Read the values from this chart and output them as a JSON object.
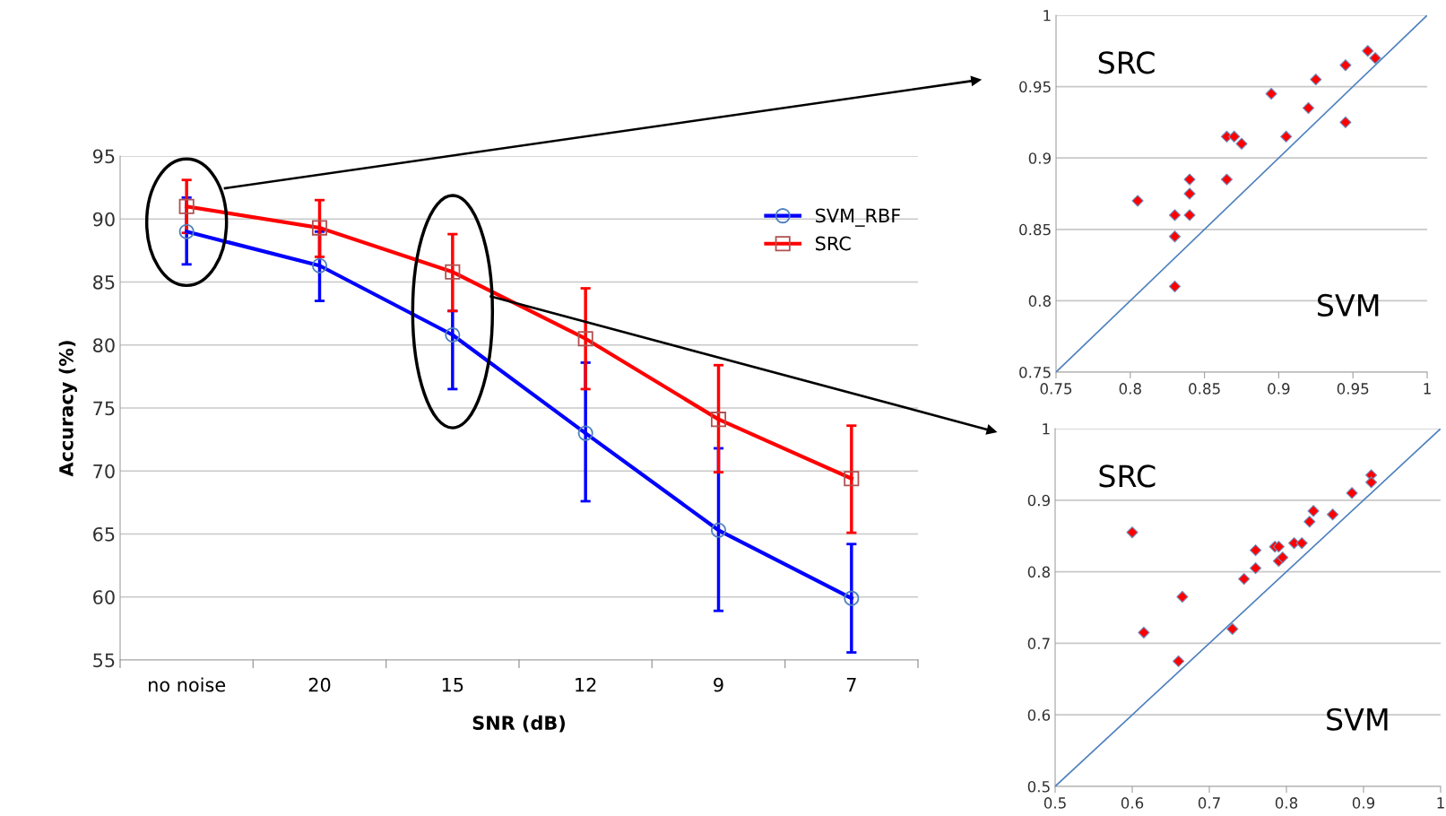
{
  "chart_data": [
    {
      "type": "line",
      "xlabel": "SNR (dB)",
      "ylabel": "Accuracy (%)",
      "categories": [
        "no noise",
        "20",
        "15",
        "12",
        "9",
        "7"
      ],
      "ylim": [
        55,
        95
      ],
      "yticks": [
        55,
        60,
        65,
        70,
        75,
        80,
        85,
        90,
        95
      ],
      "grid": "y",
      "legend": "top right",
      "series": [
        {
          "name": "SVM_RBF",
          "color": "#0000ff",
          "marker": "circle",
          "values": [
            89.0,
            86.3,
            80.8,
            73.0,
            65.3,
            59.9
          ],
          "errors": [
            [
              86.4,
              91.7
            ],
            [
              83.5,
              89.0
            ],
            [
              76.5,
              82.7
            ],
            [
              67.6,
              78.6
            ],
            [
              58.9,
              71.8
            ],
            [
              55.6,
              64.2
            ]
          ]
        },
        {
          "name": "SRC",
          "color": "#ff0000",
          "marker": "square",
          "values": [
            91.0,
            89.3,
            85.8,
            80.5,
            74.1,
            69.4
          ],
          "errors": [
            [
              88.9,
              93.1
            ],
            [
              87.0,
              91.5
            ],
            [
              82.7,
              88.8
            ],
            [
              76.5,
              84.5
            ],
            [
              69.9,
              78.4
            ],
            [
              65.1,
              73.6
            ]
          ]
        }
      ]
    },
    {
      "type": "scatter",
      "xlim": [
        0.75,
        1
      ],
      "xticks": [
        0.75,
        0.8,
        0.85,
        0.9,
        0.95,
        1
      ],
      "ylim": [
        0.75,
        1
      ],
      "yticks": [
        0.75,
        0.8,
        0.85,
        0.9,
        0.95,
        1
      ],
      "grid": "y",
      "annotations": [
        "SRC",
        "SVM"
      ],
      "series": [
        {
          "type": "scatter",
          "color": "#ff0000",
          "marker": "diamond",
          "x": [
            0.805,
            0.83,
            0.83,
            0.83,
            0.84,
            0.84,
            0.84,
            0.865,
            0.87,
            0.875,
            0.865,
            0.895,
            0.905,
            0.92,
            0.925,
            0.945,
            0.945,
            0.96,
            0.965
          ],
          "values": [
            0.87,
            0.86,
            0.845,
            0.81,
            0.885,
            0.875,
            0.86,
            0.915,
            0.915,
            0.91,
            0.885,
            0.945,
            0.915,
            0.935,
            0.955,
            0.965,
            0.925,
            0.975,
            0.97
          ]
        },
        {
          "type": "line",
          "color": "#4f81bd",
          "x": [
            0.75,
            1
          ],
          "values": [
            0.75,
            1
          ]
        }
      ]
    },
    {
      "type": "scatter",
      "xlim": [
        0.5,
        1
      ],
      "xticks": [
        0.5,
        0.6,
        0.7,
        0.8,
        0.9,
        1
      ],
      "ylim": [
        0.5,
        1
      ],
      "yticks": [
        0.5,
        0.6,
        0.7,
        0.8,
        0.9,
        1
      ],
      "grid": "y",
      "annotations": [
        "SRC",
        "SVM"
      ],
      "series": [
        {
          "type": "scatter",
          "color": "#ff0000",
          "marker": "diamond",
          "x": [
            0.6,
            0.615,
            0.66,
            0.665,
            0.73,
            0.745,
            0.76,
            0.76,
            0.785,
            0.79,
            0.79,
            0.795,
            0.81,
            0.82,
            0.83,
            0.835,
            0.86,
            0.885,
            0.91,
            0.91
          ],
          "values": [
            0.855,
            0.715,
            0.675,
            0.765,
            0.72,
            0.79,
            0.83,
            0.805,
            0.835,
            0.835,
            0.815,
            0.82,
            0.84,
            0.84,
            0.87,
            0.885,
            0.88,
            0.91,
            0.935,
            0.925
          ]
        },
        {
          "type": "line",
          "color": "#4f81bd",
          "x": [
            0.5,
            1
          ],
          "values": [
            0.5,
            1
          ]
        }
      ]
    }
  ]
}
